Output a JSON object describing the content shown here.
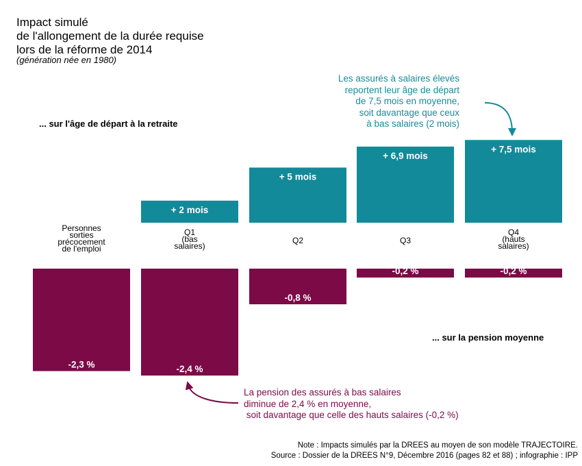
{
  "title_lines": [
    "Impact simulé",
    "de l'allongement de la durée requise",
    "lors de la réforme de 2014"
  ],
  "subtitle": "(génération née en 1980)",
  "section_top_label": "... sur l'âge de départ à la retraite",
  "section_bottom_label": "... sur la pension moyenne",
  "annotation_top": [
    "Les assurés à salaires élevés",
    "reportent leur âge de départ",
    "de 7,5 mois en moyenne,",
    "soit davantage que ceux",
    "à bas salaires (2 mois)"
  ],
  "annotation_bottom": [
    "La pension des assurés à bas salaires",
    "diminue de 2,4 % en moyenne,",
    " soit davantage que celle des hauts salaires (-0,2 %)"
  ],
  "note_lines": [
    "Note : Impacts simulés par la DREES au moyen de son modèle TRAJECTOIRE.",
    "Source : Dossier de la DREES N°9, Décembre 2016 (pages 82 et 88) ; infographie : IPP"
  ],
  "colors": {
    "teal": "#138a99",
    "plum": "#7b0a47",
    "teal_text": "#1a8a99"
  },
  "chart_data": [
    {
      "type": "bar",
      "categories": [
        [
          "Personnes",
          "sorties",
          "précocement",
          "de l'emploi"
        ],
        [
          "Q1",
          "(bas",
          "salaires)"
        ],
        [
          "Q2"
        ],
        [
          "Q3"
        ],
        [
          "Q4",
          "(hauts",
          "salaires)"
        ]
      ],
      "values": [
        null,
        2,
        5,
        6.9,
        7.5
      ],
      "value_labels": [
        "",
        "+ 2 mois",
        "+ 5 mois",
        "+ 6,9 mois",
        "+ 7,5 mois"
      ],
      "ylabel": "mois",
      "color": "#138a99"
    },
    {
      "type": "bar",
      "categories": [
        [
          "Personnes",
          "sorties",
          "précocement",
          "de l'emploi"
        ],
        [
          "Q1",
          "(bas",
          "salaires)"
        ],
        [
          "Q2"
        ],
        [
          "Q3"
        ],
        [
          "Q4",
          "(hauts",
          "salaires)"
        ]
      ],
      "values": [
        -2.3,
        -2.4,
        -0.8,
        -0.2,
        -0.2
      ],
      "value_labels": [
        "-2,3 %",
        "-2,4 %",
        "-0,8 %",
        "-0,2 %",
        "-0,2 %"
      ],
      "ylabel": "%",
      "color": "#7b0a47"
    }
  ]
}
